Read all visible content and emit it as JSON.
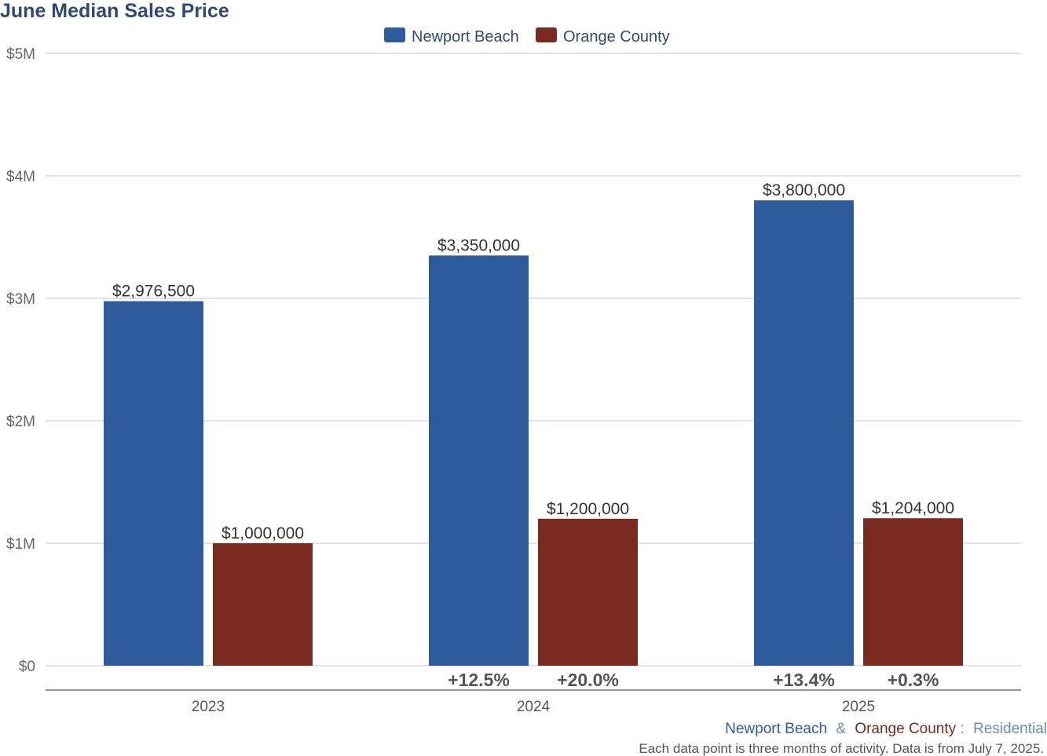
{
  "chart_data": {
    "type": "bar",
    "title": "June Median Sales Price",
    "categories": [
      "2023",
      "2024",
      "2025"
    ],
    "series": [
      {
        "name": "Newport Beach",
        "color": "#2e5b9b",
        "values": [
          2976500,
          3350000,
          3800000
        ],
        "labels": [
          "$2,976,500",
          "$3,350,000",
          "$3,800,000"
        ],
        "changes": [
          "",
          "+12.5%",
          "+13.4%"
        ]
      },
      {
        "name": "Orange County",
        "color": "#7a2a1e",
        "values": [
          1000000,
          1200000,
          1204000
        ],
        "labels": [
          "$1,000,000",
          "$1,200,000",
          "$1,204,000"
        ],
        "changes": [
          "",
          "+20.0%",
          "+0.3%"
        ]
      }
    ],
    "ylim": [
      0,
      5000000
    ],
    "yticks": [
      {
        "value": 0,
        "label": "$0"
      },
      {
        "value": 1000000,
        "label": "$1M"
      },
      {
        "value": 2000000,
        "label": "$2M"
      },
      {
        "value": 3000000,
        "label": "$3M"
      },
      {
        "value": 4000000,
        "label": "$4M"
      },
      {
        "value": 5000000,
        "label": "$5M"
      }
    ],
    "grid": true,
    "legend_position": "top-center"
  },
  "footer": {
    "area1": "Newport Beach",
    "amp": "&",
    "area2": "Orange County",
    "colon": ":",
    "property_type": "Residential",
    "note": "Each data point is three months of activity. Data is from July 7, 2025."
  },
  "colors": {
    "title": "#2e4a74",
    "footer_area1": "#2e5b9b",
    "footer_area2": "#7a2a1e",
    "footer_type": "#6a8cb8"
  }
}
